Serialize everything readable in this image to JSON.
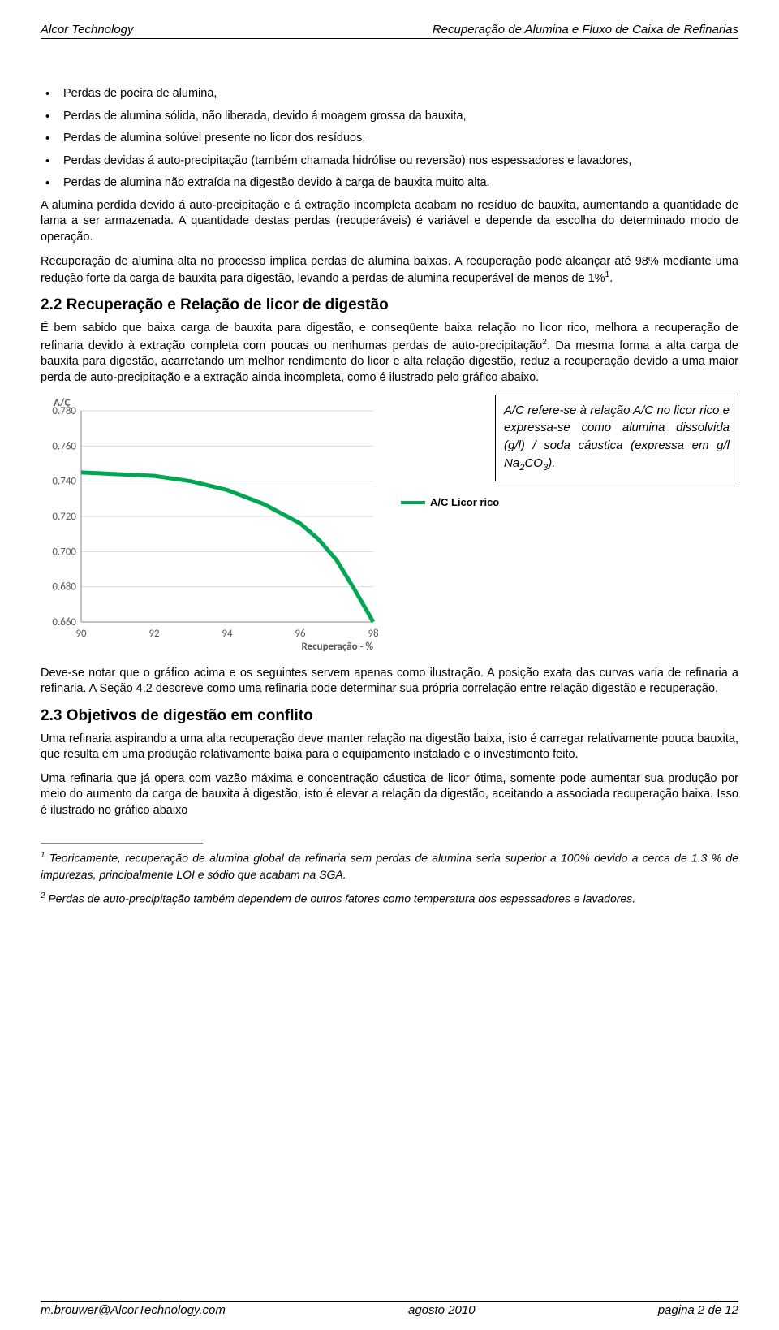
{
  "header": {
    "left": "Alcor Technology",
    "right": "Recuperação de Alumina e Fluxo de Caixa de Refinarias"
  },
  "bullets": [
    "Perdas de poeira de alumina,",
    "Perdas de alumina sólida, não liberada, devido á moagem grossa da bauxita,",
    "Perdas de alumina solúvel presente no licor dos resíduos,",
    "Perdas devidas á auto-precipitação (também chamada hidrólise ou reversão) nos espessadores e lavadores,",
    "Perdas de alumina não extraída na digestão devido à carga de bauxita muito alta."
  ],
  "para": {
    "p1": "A alumina perdida devido á auto-precipitação e á extração incompleta acabam no resíduo de bauxita, aumentando a quantidade de lama a ser armazenada. A quantidade destas perdas (recuperáveis) é variável e depende da escolha do determinado modo de operação.",
    "p2a": "Recuperação de alumina alta no processo implica perdas de alumina baixas. A recuperação pode alcançar até 98% mediante uma redução forte da carga de bauxita para digestão, levando a perdas de alumina recuperável de menos de 1%",
    "p2b": ".",
    "p3a": "É bem sabido que baixa carga de bauxita para digestão, e conseqüente baixa relação no licor rico, melhora a recuperação de refinaria devido à extração completa com poucas ou nenhumas perdas de auto-precipitação",
    "p3b": ". Da mesma forma a alta carga de bauxita para digestão, acarretando um melhor rendimento do licor e alta relação digestão, reduz a recuperação devido a uma maior perda de auto-precipitação e a extração ainda incompleta, como é ilustrado pelo gráfico abaixo.",
    "p4": "Deve-se notar que o gráfico acima e os seguintes servem apenas como ilustração. A posição exata das curvas varia de refinaria a refinaria. A Seção 4.2 descreve como uma refinaria pode determinar sua própria correlação entre relação digestão e recuperação.",
    "p5": "Uma refinaria aspirando a uma alta recuperação deve manter relação na digestão baixa, isto é carregar relativamente pouca bauxita, que resulta em uma produção relativamente baixa para o equipamento instalado e o investimento feito.",
    "p6": "Uma refinaria que já opera com vazão máxima e concentração cáustica de licor ótima, somente pode aumentar sua produção por meio do aumento da carga de bauxita à digestão, isto é elevar a relação da digestão, aceitando a associada recuperação baixa. Isso é ilustrado no gráfico abaixo"
  },
  "headings": {
    "h22": "2.2 Recuperação e Relação de licor de digestão",
    "h23": "2.3 Objetivos de digestão em conflito"
  },
  "chart": {
    "type": "line",
    "y_title": "A/C",
    "x_title": "Recuperação - %",
    "xlim": [
      90,
      98
    ],
    "ylim": [
      0.66,
      0.78
    ],
    "x_ticks": [
      90,
      92,
      94,
      96,
      98
    ],
    "y_ticks": [
      0.66,
      0.68,
      0.7,
      0.72,
      0.74,
      0.76,
      0.78
    ],
    "y_tick_labels": [
      "0.660",
      "0.680",
      "0.700",
      "0.720",
      "0.740",
      "0.760",
      "0.780"
    ],
    "series": {
      "name": "A/C Licor rico",
      "color": "#00a651",
      "line_width": 5,
      "points": [
        [
          90.0,
          0.745
        ],
        [
          91.0,
          0.744
        ],
        [
          92.0,
          0.743
        ],
        [
          93.0,
          0.74
        ],
        [
          94.0,
          0.735
        ],
        [
          95.0,
          0.727
        ],
        [
          96.0,
          0.716
        ],
        [
          96.5,
          0.707
        ],
        [
          97.0,
          0.695
        ],
        [
          97.5,
          0.678
        ],
        [
          98.0,
          0.66
        ]
      ]
    },
    "background_color": "#ffffff",
    "grid_color": "#d9d9d9",
    "axis_color": "#888888",
    "label_color": "#595959",
    "label_fontsize": 13
  },
  "callout": {
    "text_a": "A/C refere-se à relação A/C no licor rico e expressa-se como alumina dissolvida (g/l) / soda cáustica (expressa em g/l Na",
    "text_b": "CO",
    "text_c": ")."
  },
  "legend_label": "A/C Licor rico",
  "footnotes": {
    "f1": " Teoricamente, recuperação de alumina global da refinaria sem perdas de alumina seria superior a 100% devido a cerca de 1.3 % de impurezas, principalmente LOI e sódio que acabam na SGA.",
    "f2": " Perdas de auto-precipitação também dependem de outros fatores como temperatura dos espessadores e lavadores."
  },
  "footer": {
    "left": "m.brouwer@AlcorTechnology.com",
    "center": "agosto 2010",
    "right": "pagina 2 de 12"
  }
}
